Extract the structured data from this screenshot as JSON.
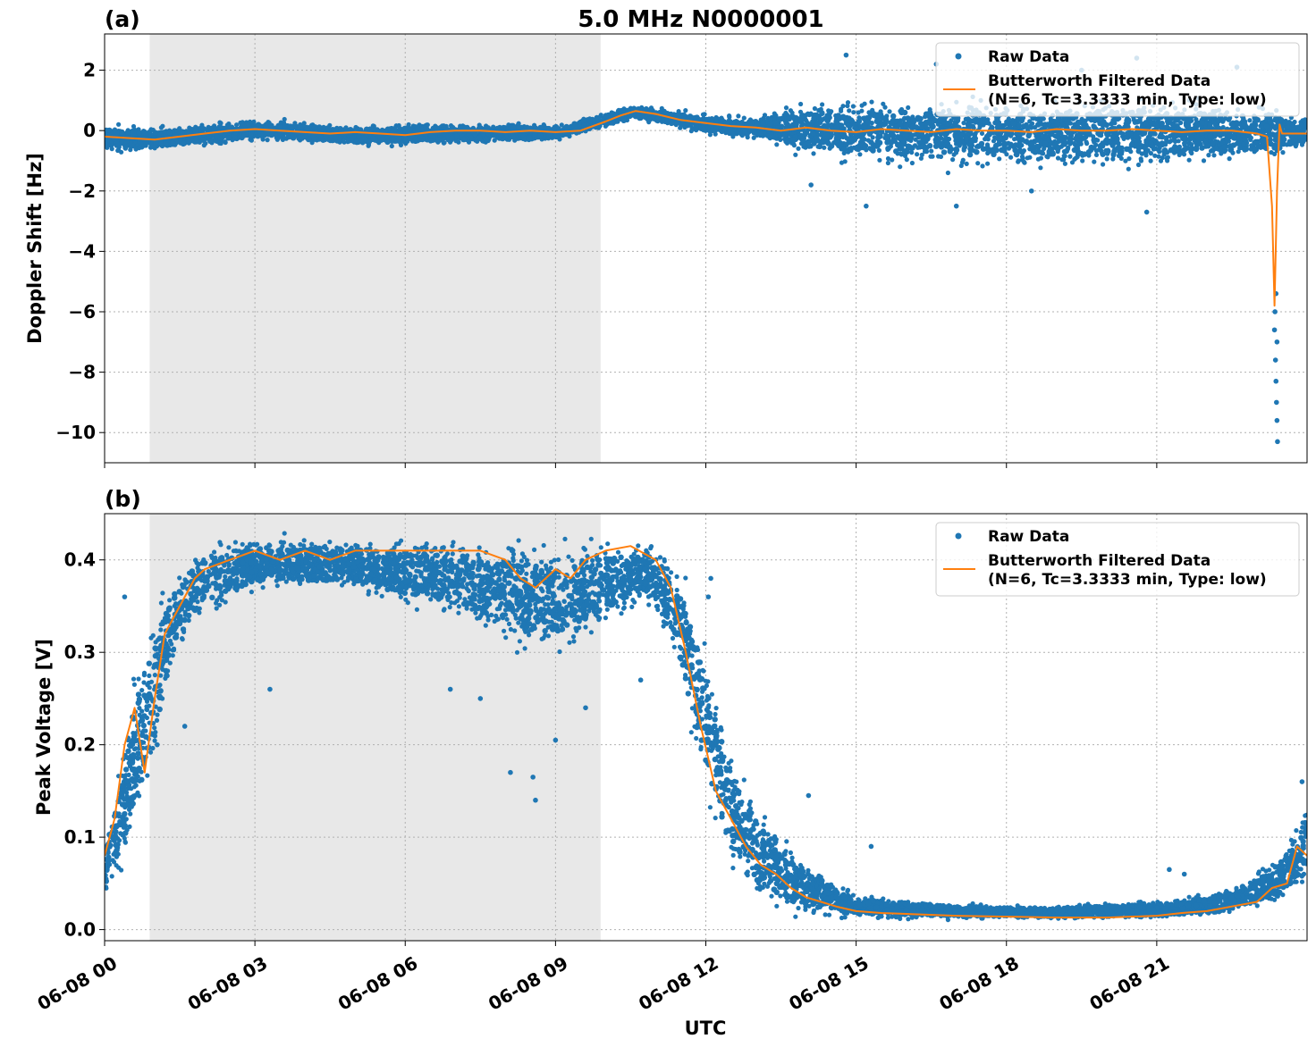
{
  "figure": {
    "title": "5.0 MHz N0000001",
    "xlabel": "UTC"
  },
  "colors": {
    "raw": "#1f77b4",
    "filtered": "#ff7f0e",
    "shade": "#e8e8e8",
    "grid": "#b0b0b0"
  },
  "chart_data": [
    {
      "type": "scatter",
      "panel_label": "(a)",
      "title": "5.0 MHz N0000001",
      "xlabel": "",
      "ylabel": "Doppler Shift [Hz]",
      "xlim_hours": [
        0,
        24
      ],
      "ylim": [
        -11,
        3.2
      ],
      "yticks": [
        2,
        0,
        -2,
        -4,
        -6,
        -8,
        -10
      ],
      "ytick_labels": [
        "2",
        "0",
        "−2",
        "−4",
        "−6",
        "−8",
        "−10"
      ],
      "xtick_labels": [],
      "grid": true,
      "legend_position": "top-right",
      "shaded_interval_hours": [
        0.9,
        9.9
      ],
      "series": [
        {
          "name": "Raw Data",
          "kind": "scatter",
          "envelope_hours": [
            0,
            1,
            2,
            3,
            4,
            5,
            6,
            7,
            8,
            9,
            9.9,
            10.5,
            11,
            12,
            13,
            13.5,
            14,
            15,
            16,
            17,
            18,
            19,
            20,
            21,
            22,
            23,
            23.5,
            24
          ],
          "envelope_upper": [
            0.3,
            0.2,
            0.3,
            0.45,
            0.35,
            0.25,
            0.3,
            0.3,
            0.3,
            0.25,
            0.6,
            0.9,
            0.8,
            0.6,
            0.5,
            0.9,
            1.1,
            1.2,
            1.3,
            1.3,
            1.3,
            1.3,
            1.3,
            1.3,
            1.2,
            1.0,
            0.8,
            0.6
          ],
          "envelope_lower": [
            -0.8,
            -0.8,
            -0.6,
            -0.4,
            -0.5,
            -0.6,
            -0.6,
            -0.5,
            -0.5,
            -0.4,
            0.0,
            0.3,
            0.2,
            -0.2,
            -0.3,
            -0.7,
            -1.0,
            -1.3,
            -1.4,
            -1.5,
            -1.5,
            -1.5,
            -1.5,
            -1.4,
            -1.3,
            -1.2,
            -1.0,
            -0.7
          ],
          "outliers": [
            {
              "x": 14.8,
              "y": 2.5
            },
            {
              "x": 16.6,
              "y": 2.2
            },
            {
              "x": 19.5,
              "y": 2.0
            },
            {
              "x": 20.6,
              "y": 2.4
            },
            {
              "x": 22.6,
              "y": 2.1
            },
            {
              "x": 15.2,
              "y": -2.5
            },
            {
              "x": 17.0,
              "y": -2.5
            },
            {
              "x": 20.8,
              "y": -2.7
            },
            {
              "x": 18.5,
              "y": -2.0
            },
            {
              "x": 14.1,
              "y": -1.8
            },
            {
              "x": 23.35,
              "y": -6.6
            },
            {
              "x": 23.37,
              "y": -7.6
            },
            {
              "x": 23.38,
              "y": -8.3
            },
            {
              "x": 23.39,
              "y": -9.0
            },
            {
              "x": 23.4,
              "y": -9.6
            },
            {
              "x": 23.41,
              "y": -10.3
            },
            {
              "x": 23.36,
              "y": -6.0
            },
            {
              "x": 23.38,
              "y": -5.4
            },
            {
              "x": 23.4,
              "y": -7.0
            }
          ]
        },
        {
          "name": "Butterworth Filtered Data\n(N=6, Tc=3.3333 min, Type: low)",
          "kind": "line",
          "x_hours": [
            0,
            0.5,
            1,
            1.5,
            2,
            2.5,
            3,
            3.5,
            4,
            4.5,
            5,
            5.5,
            6,
            6.5,
            7,
            7.5,
            8,
            8.5,
            9,
            9.5,
            10,
            10.3,
            10.6,
            11,
            11.5,
            12,
            12.5,
            13,
            13.5,
            14,
            14.5,
            15,
            15.5,
            16,
            16.5,
            17,
            17.5,
            18,
            18.5,
            19,
            19.5,
            20,
            20.5,
            21,
            21.5,
            22,
            22.5,
            23,
            23.2,
            23.3,
            23.35,
            23.4,
            23.45,
            23.5,
            23.8,
            24
          ],
          "y": [
            -0.2,
            -0.25,
            -0.3,
            -0.2,
            -0.1,
            0.0,
            0.05,
            0.0,
            -0.05,
            -0.1,
            -0.05,
            -0.1,
            -0.15,
            -0.05,
            0.0,
            0.0,
            -0.05,
            0.0,
            -0.05,
            0.0,
            0.3,
            0.5,
            0.65,
            0.55,
            0.35,
            0.25,
            0.15,
            0.1,
            0.0,
            0.1,
            0.0,
            -0.05,
            0.05,
            0.0,
            -0.05,
            0.05,
            0.0,
            0.0,
            -0.05,
            0.05,
            0.0,
            0.0,
            0.05,
            0.0,
            -0.05,
            0.0,
            0.0,
            -0.1,
            -0.2,
            -2.5,
            -5.8,
            -2.0,
            0.2,
            -0.1,
            -0.1,
            -0.1
          ]
        }
      ]
    },
    {
      "type": "scatter",
      "panel_label": "(b)",
      "title": "",
      "xlabel": "UTC",
      "ylabel": "Peak Voltage [V]",
      "xlim_hours": [
        0,
        24
      ],
      "ylim": [
        -0.012,
        0.45
      ],
      "yticks": [
        0.0,
        0.1,
        0.2,
        0.3,
        0.4
      ],
      "ytick_labels": [
        "0.0",
        "0.1",
        "0.2",
        "0.3",
        "0.4"
      ],
      "xticks_hours": [
        0,
        3,
        6,
        9,
        12,
        15,
        18,
        21
      ],
      "xtick_labels": [
        "06-08 00",
        "06-08 03",
        "06-08 06",
        "06-08 09",
        "06-08 12",
        "06-08 15",
        "06-08 18",
        "06-08 21"
      ],
      "grid": true,
      "legend_position": "top-right",
      "shaded_interval_hours": [
        0.9,
        9.9
      ],
      "series": [
        {
          "name": "Raw Data",
          "kind": "scatter",
          "envelope_hours": [
            0,
            0.3,
            0.6,
            1.0,
            1.3,
            1.6,
            2.0,
            3,
            4,
            5,
            6,
            7,
            8,
            9,
            10,
            10.8,
            11.3,
            11.7,
            12,
            12.3,
            12.7,
            13,
            13.5,
            14,
            14.5,
            15,
            16,
            17,
            18,
            19,
            20,
            21,
            22,
            22.5,
            23,
            23.5,
            24
          ],
          "envelope_upper": [
            0.1,
            0.18,
            0.3,
            0.36,
            0.39,
            0.41,
            0.425,
            0.43,
            0.43,
            0.43,
            0.43,
            0.43,
            0.43,
            0.43,
            0.43,
            0.425,
            0.42,
            0.37,
            0.32,
            0.25,
            0.19,
            0.15,
            0.11,
            0.08,
            0.06,
            0.04,
            0.035,
            0.03,
            0.028,
            0.028,
            0.03,
            0.033,
            0.04,
            0.05,
            0.065,
            0.09,
            0.15
          ],
          "envelope_lower": [
            0.03,
            0.05,
            0.08,
            0.16,
            0.25,
            0.3,
            0.33,
            0.36,
            0.36,
            0.36,
            0.34,
            0.33,
            0.3,
            0.28,
            0.32,
            0.35,
            0.3,
            0.2,
            0.13,
            0.08,
            0.04,
            0.02,
            0.012,
            0.01,
            0.01,
            0.01,
            0.01,
            0.01,
            0.01,
            0.01,
            0.01,
            0.01,
            0.012,
            0.015,
            0.02,
            0.025,
            0.03
          ],
          "outliers": [
            {
              "x": 0.4,
              "y": 0.36
            },
            {
              "x": 1.05,
              "y": 0.2
            },
            {
              "x": 1.6,
              "y": 0.22
            },
            {
              "x": 3.3,
              "y": 0.26
            },
            {
              "x": 6.9,
              "y": 0.26
            },
            {
              "x": 7.5,
              "y": 0.25
            },
            {
              "x": 8.1,
              "y": 0.17
            },
            {
              "x": 8.6,
              "y": 0.14
            },
            {
              "x": 8.55,
              "y": 0.165
            },
            {
              "x": 9.0,
              "y": 0.205
            },
            {
              "x": 9.6,
              "y": 0.24
            },
            {
              "x": 12.1,
              "y": 0.38
            },
            {
              "x": 12.05,
              "y": 0.36
            },
            {
              "x": 14.05,
              "y": 0.145
            },
            {
              "x": 15.3,
              "y": 0.09
            },
            {
              "x": 21.25,
              "y": 0.065
            },
            {
              "x": 21.55,
              "y": 0.06
            },
            {
              "x": 23.9,
              "y": 0.16
            },
            {
              "x": 10.7,
              "y": 0.27
            }
          ]
        },
        {
          "name": "Butterworth Filtered Data\n(N=6, Tc=3.3333 min, Type: low)",
          "kind": "line",
          "x_hours": [
            0,
            0.2,
            0.4,
            0.6,
            0.8,
            1.0,
            1.2,
            1.5,
            1.8,
            2.0,
            2.5,
            3,
            3.5,
            4,
            4.5,
            5,
            5.5,
            6,
            6.5,
            7,
            7.5,
            8,
            8.3,
            8.6,
            9,
            9.3,
            9.6,
            10,
            10.5,
            11,
            11.3,
            11.6,
            11.9,
            12.2,
            12.5,
            12.8,
            13.1,
            13.4,
            13.7,
            14,
            14.3,
            14.6,
            15,
            15.5,
            16,
            17,
            18,
            19,
            20,
            21,
            21.5,
            22,
            22.5,
            23,
            23.3,
            23.6,
            23.8,
            24
          ],
          "y": [
            0.08,
            0.12,
            0.2,
            0.24,
            0.17,
            0.25,
            0.32,
            0.35,
            0.38,
            0.39,
            0.4,
            0.41,
            0.4,
            0.41,
            0.4,
            0.41,
            0.41,
            0.41,
            0.41,
            0.41,
            0.41,
            0.4,
            0.38,
            0.37,
            0.39,
            0.38,
            0.4,
            0.41,
            0.415,
            0.4,
            0.37,
            0.3,
            0.22,
            0.15,
            0.12,
            0.09,
            0.07,
            0.06,
            0.045,
            0.035,
            0.03,
            0.025,
            0.02,
            0.018,
            0.017,
            0.015,
            0.014,
            0.013,
            0.013,
            0.015,
            0.018,
            0.02,
            0.025,
            0.03,
            0.045,
            0.05,
            0.09,
            0.08
          ]
        }
      ]
    }
  ]
}
